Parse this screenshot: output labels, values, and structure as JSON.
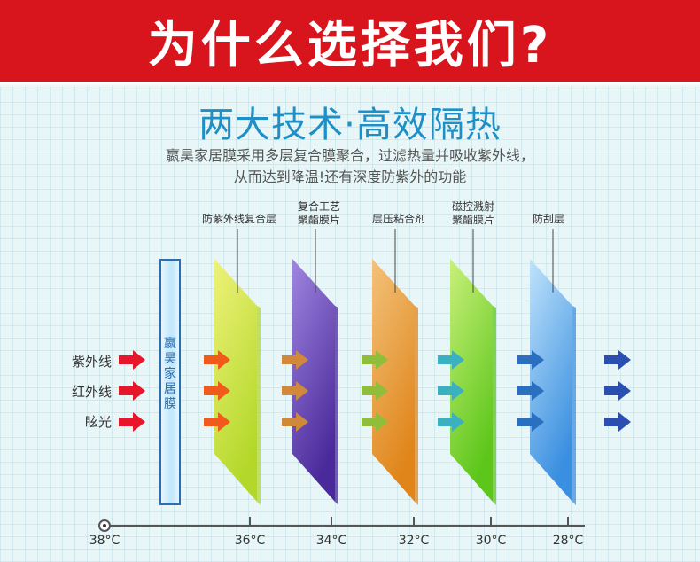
{
  "header": {
    "title": "为什么选择我们?"
  },
  "subtitle": "两大技术·高效隔热",
  "description": {
    "line1": "嬴昊家居膜采用多层复合膜聚合，过滤热量并吸收紫外线，",
    "line2": "从而达到降温!还有深度防紫外的功能"
  },
  "inputs": [
    "紫外线",
    "红外线",
    "眩光"
  ],
  "film_label": [
    "嬴",
    "昊",
    "家",
    "居",
    "膜"
  ],
  "layers": [
    {
      "label": [
        "防紫外线复合层"
      ],
      "color_top": "#eef27a",
      "color_bottom": "#b4d82a",
      "arrow_color": "#f05a1a"
    },
    {
      "label": [
        "复合工艺",
        "聚酯膜片"
      ],
      "color_top": "#a085e0",
      "color_bottom": "#4a2a9a",
      "arrow_color": "#d0883a"
    },
    {
      "label": [
        "层压粘合剂"
      ],
      "color_top": "#f2c27a",
      "color_bottom": "#e0851a",
      "arrow_color": "#8fbe3a"
    },
    {
      "label": [
        "磁控溅射",
        "聚酯膜片"
      ],
      "color_top": "#c9f07a",
      "color_bottom": "#5cc61a",
      "arrow_color": "#3ab0c0"
    },
    {
      "label": [
        "防刮层"
      ],
      "color_top": "#bfe3fb",
      "color_bottom": "#3a8fe0",
      "arrow_color": "#2a6fc0"
    }
  ],
  "input_arrow_color": "#e8162a",
  "output_arrow_color": "#2a4fb0",
  "temperatures": [
    "38°C",
    "36°C",
    "34°C",
    "32°C",
    "30°C",
    "28°C"
  ]
}
